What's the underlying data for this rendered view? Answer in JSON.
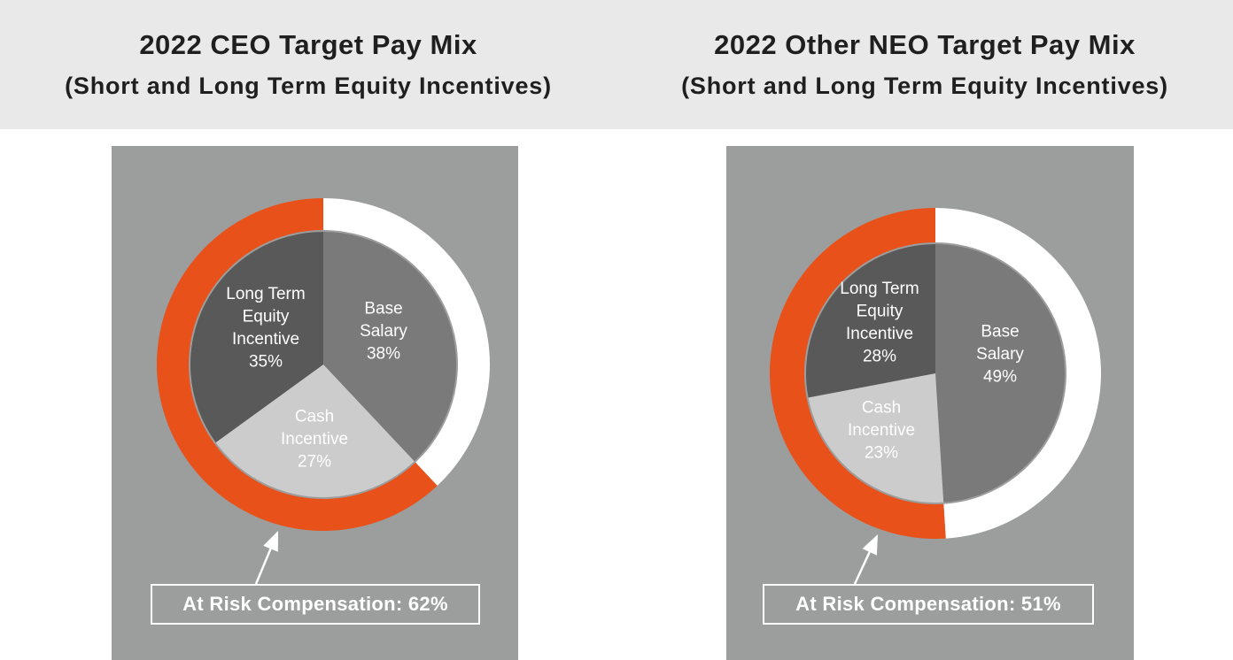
{
  "colors": {
    "at_risk_ring": "#e8511a",
    "base_ring": "#ffffff",
    "base_salary": "#7a7a7a",
    "long_term_equity": "#595959",
    "cash_incentive": "#cccccc"
  },
  "chart_data": [
    {
      "type": "pie",
      "title": "2022 CEO Target Pay Mix",
      "subtitle": "(Short and Long Term Equity Incentives)",
      "slices": [
        {
          "name": "Base Salary",
          "label_lines": [
            "Base",
            "Salary",
            "38%"
          ],
          "value": 38,
          "color_key": "base_salary"
        },
        {
          "name": "Cash Incentive",
          "label_lines": [
            "Cash",
            "Incentive",
            "27%"
          ],
          "value": 27,
          "color_key": "cash_incentive"
        },
        {
          "name": "Long Term Equity Incentive",
          "label_lines": [
            "Long Term",
            "Equity",
            "Incentive",
            "35%"
          ],
          "value": 35,
          "color_key": "long_term_equity"
        }
      ],
      "ring": {
        "at_risk_percent": 62
      },
      "annotation": "At Risk Compensation: 62%"
    },
    {
      "type": "pie",
      "title": "2022 Other NEO Target Pay Mix",
      "subtitle": "(Short and Long Term Equity Incentives)",
      "slices": [
        {
          "name": "Base Salary",
          "label_lines": [
            "Base",
            "Salary",
            "49%"
          ],
          "value": 49,
          "color_key": "base_salary"
        },
        {
          "name": "Cash Incentive",
          "label_lines": [
            "Cash",
            "Incentive",
            "23%"
          ],
          "value": 23,
          "color_key": "cash_incentive"
        },
        {
          "name": "Long Term Equity Incentive",
          "label_lines": [
            "Long Term",
            "Equity",
            "Incentive",
            "28%"
          ],
          "value": 28,
          "color_key": "long_term_equity"
        }
      ],
      "ring": {
        "at_risk_percent": 51
      },
      "annotation": "At Risk Compensation: 51%"
    }
  ]
}
